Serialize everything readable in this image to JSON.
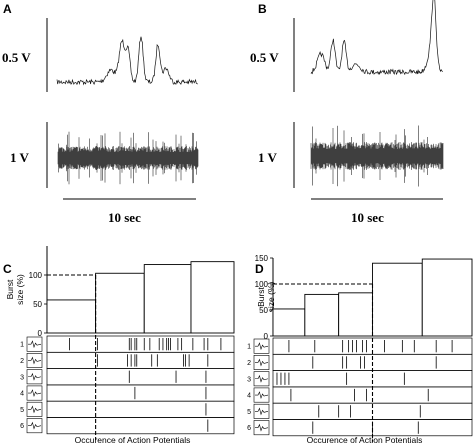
{
  "panels": {
    "A": {
      "letter": "A",
      "top_scale": "0.5 V",
      "bottom_scale": "1 V",
      "time_scale": "10 sec"
    },
    "B": {
      "letter": "B",
      "top_scale": "0.5 V",
      "bottom_scale": "1 V",
      "time_scale": "10 sec"
    }
  },
  "chart_data": [
    {
      "panel": "C",
      "type": "bar",
      "ylabel": "Burst\nsize (%)",
      "xlabel": "Occurence of Action Potentials",
      "ylim": [
        0,
        150
      ],
      "yticks": [
        0,
        50,
        100
      ],
      "reference_value": 100,
      "bars": [
        {
          "start": 0.0,
          "end": 0.26,
          "value": 57
        },
        {
          "start": 0.26,
          "end": 0.52,
          "value": 103
        },
        {
          "start": 0.52,
          "end": 0.77,
          "value": 118
        },
        {
          "start": 0.77,
          "end": 1.0,
          "value": 123
        }
      ],
      "divider_at": 0.26,
      "unit_rows": [
        {
          "label": "1",
          "spikes": [
            0.12,
            0.27,
            0.44,
            0.45,
            0.47,
            0.48,
            0.52,
            0.55,
            0.6,
            0.62,
            0.64,
            0.65,
            0.66,
            0.7,
            0.72,
            0.78,
            0.84,
            0.86,
            0.93
          ]
        },
        {
          "label": "2",
          "spikes": [
            0.27,
            0.43,
            0.45,
            0.47,
            0.48,
            0.56,
            0.59,
            0.73,
            0.74,
            0.76,
            0.86
          ]
        },
        {
          "label": "3",
          "spikes": [
            0.44,
            0.69,
            0.85
          ]
        },
        {
          "label": "4",
          "spikes": [
            0.47,
            0.85
          ]
        },
        {
          "label": "5",
          "spikes": [
            0.85
          ]
        },
        {
          "label": "6",
          "spikes": [
            0.86
          ]
        }
      ]
    },
    {
      "panel": "D",
      "type": "bar",
      "ylabel": "Burst\nsize (%)",
      "xlabel": "Occurence of Action Potentials",
      "ylim": [
        0,
        150
      ],
      "yticks": [
        0,
        50,
        100,
        150
      ],
      "reference_value": 100,
      "bars": [
        {
          "start": 0.0,
          "end": 0.16,
          "value": 52
        },
        {
          "start": 0.16,
          "end": 0.33,
          "value": 80
        },
        {
          "start": 0.33,
          "end": 0.5,
          "value": 83
        },
        {
          "start": 0.5,
          "end": 0.75,
          "value": 140
        },
        {
          "start": 0.75,
          "end": 1.0,
          "value": 148
        }
      ],
      "divider_at": 0.5,
      "unit_rows": [
        {
          "label": "1",
          "spikes": [
            0.08,
            0.21,
            0.35,
            0.38,
            0.4,
            0.42,
            0.45,
            0.47,
            0.56,
            0.65,
            0.71,
            0.82,
            0.9
          ]
        },
        {
          "label": "2",
          "spikes": [
            0.2,
            0.35,
            0.37,
            0.44,
            0.46,
            0.82
          ]
        },
        {
          "label": "3",
          "spikes": [
            0.02,
            0.04,
            0.06,
            0.08,
            0.37,
            0.66
          ]
        },
        {
          "label": "4",
          "spikes": [
            0.09,
            0.41,
            0.47,
            0.78
          ]
        },
        {
          "label": "5",
          "spikes": [
            0.23,
            0.33,
            0.39,
            0.74
          ]
        },
        {
          "label": "6",
          "spikes": [
            0.2,
            0.5,
            0.73
          ]
        }
      ]
    }
  ]
}
